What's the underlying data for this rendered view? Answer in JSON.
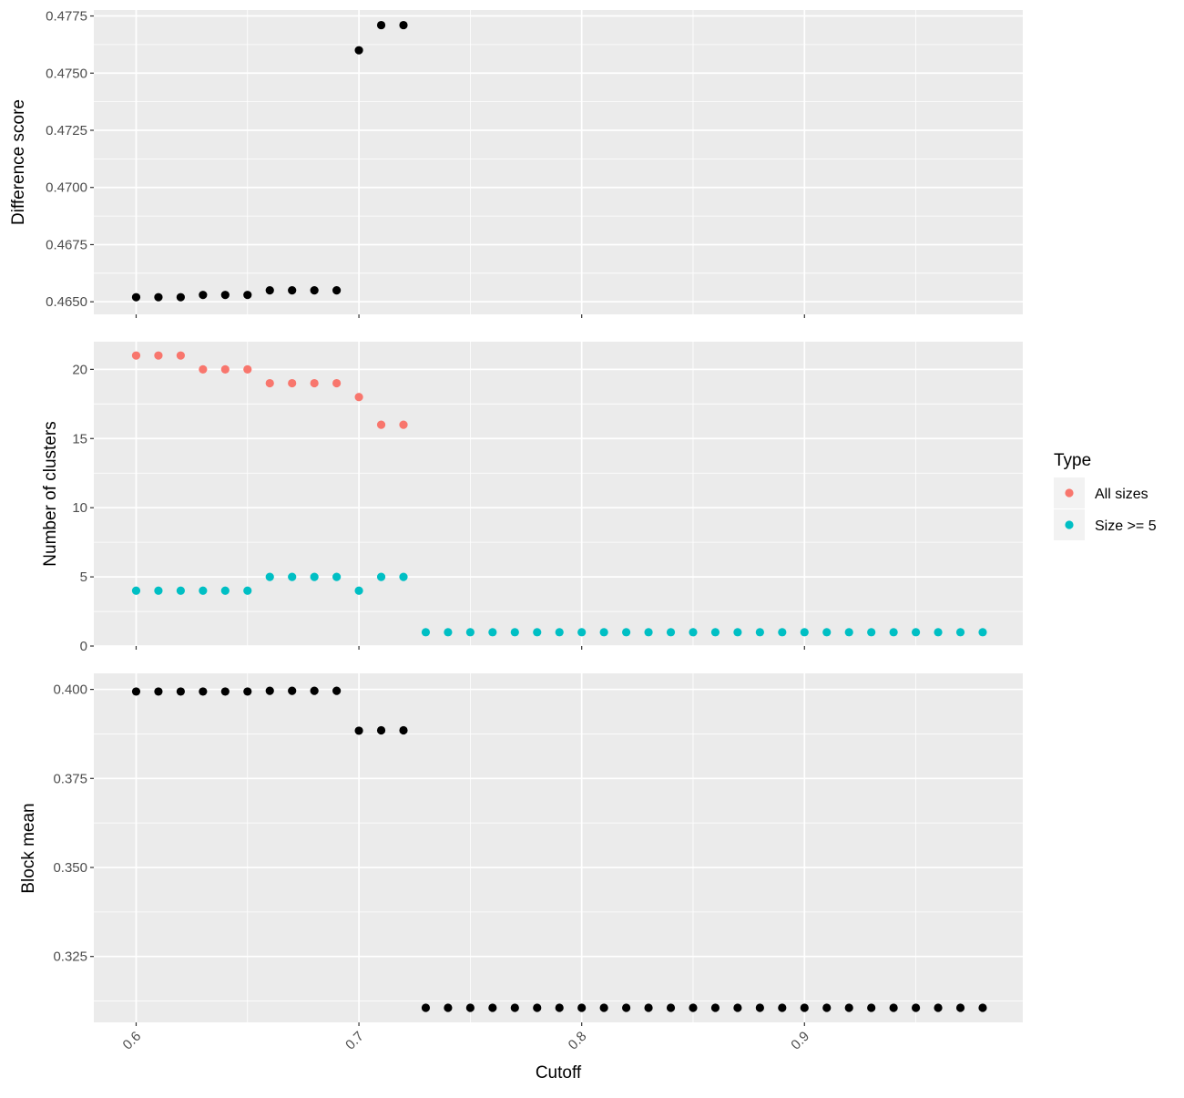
{
  "chart_data": {
    "type": "scatter",
    "layout": "faceted-panels",
    "shared_x": {
      "label": "Cutoff",
      "range": [
        0.581,
        0.998
      ],
      "ticks": [
        0.6,
        0.7,
        0.8,
        0.9
      ],
      "tick_labels": [
        "0.6",
        "0.7",
        "0.8",
        "0.9"
      ],
      "minor_ticks": [
        0.65,
        0.75,
        0.85,
        0.95
      ],
      "tick_label_rotation": "45-degree"
    },
    "grid": true,
    "background": "#EBEBEB",
    "panels": [
      {
        "id": "difference",
        "ylabel": "Difference score",
        "ylim": [
          0.46445,
          0.47776
        ],
        "y_ticks": [
          0.465,
          0.4675,
          0.47,
          0.4725,
          0.475,
          0.4775
        ],
        "y_tick_labels": [
          "0.4650",
          "0.4675",
          "0.4700",
          "0.4725",
          "0.4750",
          "0.4775"
        ],
        "series": [
          {
            "color": "#000000",
            "x": [
              0.6,
              0.61,
              0.62,
              0.63,
              0.64,
              0.65,
              0.66,
              0.67,
              0.68,
              0.69,
              0.7,
              0.71,
              0.72
            ],
            "y": [
              0.4652,
              0.4652,
              0.4652,
              0.4653,
              0.4653,
              0.4653,
              0.4655,
              0.4655,
              0.4655,
              0.4655,
              0.476,
              0.4771,
              0.4771
            ]
          }
        ]
      },
      {
        "id": "clusters",
        "ylabel": "Number of clusters",
        "ylim": [
          0,
          22
        ],
        "y_ticks": [
          0,
          5,
          10,
          15,
          20
        ],
        "y_tick_labels": [
          "0",
          "5",
          "10",
          "15",
          "20"
        ],
        "series": [
          {
            "name": "All sizes",
            "color": "#F8766D",
            "x": [
              0.6,
              0.61,
              0.62,
              0.63,
              0.64,
              0.65,
              0.66,
              0.67,
              0.68,
              0.69,
              0.7,
              0.71,
              0.72
            ],
            "y": [
              21,
              21,
              21,
              20,
              20,
              20,
              19,
              19,
              19,
              19,
              18,
              16,
              16
            ]
          },
          {
            "name": "Size >= 5",
            "color": "#00BFC4",
            "x": [
              0.6,
              0.61,
              0.62,
              0.63,
              0.64,
              0.65,
              0.66,
              0.67,
              0.68,
              0.69,
              0.7,
              0.71,
              0.72,
              0.73,
              0.74,
              0.75,
              0.76,
              0.77,
              0.78,
              0.79,
              0.8,
              0.81,
              0.82,
              0.83,
              0.84,
              0.85,
              0.86,
              0.87,
              0.88,
              0.89,
              0.9,
              0.91,
              0.92,
              0.93,
              0.94,
              0.95,
              0.96,
              0.97,
              0.98
            ],
            "y": [
              4,
              4,
              4,
              4,
              4,
              4,
              5,
              5,
              5,
              5,
              4,
              5,
              5,
              1,
              1,
              1,
              1,
              1,
              1,
              1,
              1,
              1,
              1,
              1,
              1,
              1,
              1,
              1,
              1,
              1,
              1,
              1,
              1,
              1,
              1,
              1,
              1,
              1,
              1
            ]
          }
        ]
      },
      {
        "id": "block",
        "ylabel": "Block mean",
        "ylim": [
          0.3065,
          0.4045
        ],
        "y_ticks": [
          0.325,
          0.35,
          0.375,
          0.4
        ],
        "y_tick_labels": [
          "0.325",
          "0.350",
          "0.375",
          "0.400"
        ],
        "series": [
          {
            "color": "#000000",
            "x": [
              0.6,
              0.61,
              0.62,
              0.63,
              0.64,
              0.65,
              0.66,
              0.67,
              0.68,
              0.69,
              0.7,
              0.71,
              0.72,
              0.73,
              0.74,
              0.75,
              0.76,
              0.77,
              0.78,
              0.79,
              0.8,
              0.81,
              0.82,
              0.83,
              0.84,
              0.85,
              0.86,
              0.87,
              0.88,
              0.89,
              0.9,
              0.91,
              0.92,
              0.93,
              0.94,
              0.95,
              0.96,
              0.97,
              0.98
            ],
            "y": [
              0.3994,
              0.3994,
              0.3994,
              0.3994,
              0.3994,
              0.3994,
              0.3996,
              0.3996,
              0.3996,
              0.3996,
              0.3884,
              0.3885,
              0.3885,
              0.3106,
              0.3106,
              0.3106,
              0.3106,
              0.3106,
              0.3106,
              0.3106,
              0.3106,
              0.3106,
              0.3106,
              0.3106,
              0.3106,
              0.3106,
              0.3106,
              0.3106,
              0.3106,
              0.3106,
              0.3106,
              0.3106,
              0.3106,
              0.3106,
              0.3106,
              0.3106,
              0.3106,
              0.3106,
              0.3106
            ]
          }
        ]
      }
    ],
    "legend": {
      "title": "Type",
      "placement": "right",
      "entries": [
        {
          "label": "All sizes",
          "color": "#F8766D"
        },
        {
          "label": "Size >= 5",
          "color": "#00BFC4"
        }
      ]
    }
  }
}
